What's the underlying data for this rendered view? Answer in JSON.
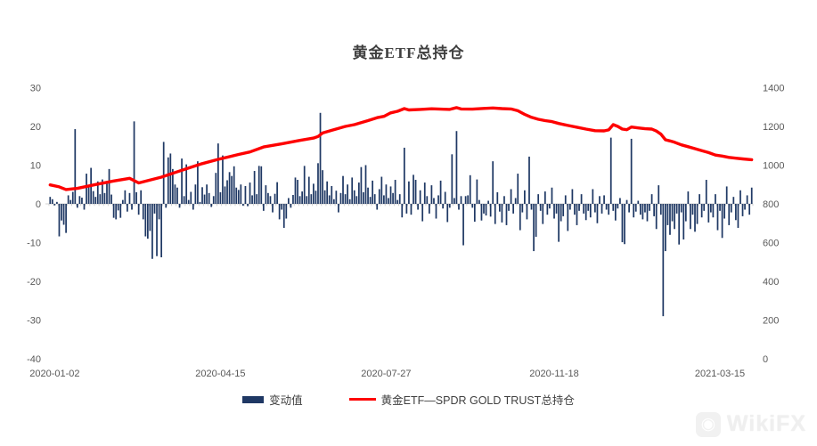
{
  "title": "黄金ETF总持仓",
  "legend": {
    "bar_label": "变动值",
    "line_label": "黄金ETF—SPDR GOLD TRUST总持仓"
  },
  "watermark": {
    "text": "WikiFX"
  },
  "colors": {
    "bar": "#1f3864",
    "line": "#fe0000",
    "axis_text": "#595959",
    "axis_line": "#d9d9d9",
    "tick": "#c8c8c8",
    "title_text": "#3f3f3f"
  },
  "chart_data": {
    "type": "bar+line",
    "title": "黄金ETF总持仓",
    "left_axis": {
      "label": "",
      "ticks": [
        30,
        20,
        10,
        0,
        -10,
        -20,
        -30,
        -40
      ],
      "range": [
        -40,
        30
      ]
    },
    "right_axis": {
      "label": "",
      "ticks": [
        1400,
        1200,
        1000,
        800,
        600,
        400,
        200,
        0
      ],
      "range": [
        0,
        1400
      ]
    },
    "x_tick_labels": [
      "2020-01-02",
      "2020-04-15",
      "2020-07-27",
      "2020-11-18",
      "2021-03-15"
    ],
    "x_tick_indices": [
      2,
      75,
      148,
      222,
      295
    ],
    "grid": false,
    "legend_position": "bottom",
    "series": [
      {
        "name": "变动值",
        "type": "bar",
        "axis": "left",
        "color": "#1f3864",
        "values": [
          1.8,
          1.2,
          -0.4,
          0.5,
          -8.4,
          -4.3,
          -5.4,
          -7.5,
          2.2,
          1,
          3.1,
          19.3,
          -1,
          2,
          1.6,
          -1.5,
          7.8,
          4.5,
          9.3,
          3.3,
          1.8,
          5.8,
          2.5,
          6.3,
          2.8,
          5.2,
          9,
          2.4,
          -3.6,
          -4,
          -1.7,
          -3.6,
          1,
          3.5,
          -2,
          2.8,
          -1.5,
          21.3,
          3,
          -2.8,
          3.5,
          -4,
          -8.4,
          -9,
          -7,
          -14.2,
          -2.5,
          -13.5,
          -4,
          -13.8,
          16,
          -1,
          12,
          13,
          9,
          5,
          4.2,
          -1,
          11.7,
          2,
          10.2,
          1,
          3.1,
          -1.5,
          5,
          11,
          0.5,
          4.3,
          2.4,
          5,
          2.8,
          -0.8,
          2,
          8,
          15.6,
          3,
          12.5,
          4.5,
          6.1,
          8.2,
          7.2,
          9.7,
          4.2,
          3.6,
          5,
          -0.5,
          4.6,
          -0.6,
          5.5,
          2.2,
          8.5,
          2.5,
          9.8,
          9.7,
          -1.8,
          4.8,
          2.8,
          2,
          -2.2,
          2.6,
          5.6,
          -4,
          -1.5,
          -6.2,
          -3.8,
          1.5,
          -1,
          2.3,
          6.8,
          6.2,
          2,
          3.2,
          9.8,
          2,
          7,
          2.5,
          5.2,
          3.4,
          10.5,
          23.5,
          8.7,
          3.5,
          5.8,
          2.2,
          4.6,
          1.2,
          3.4,
          -2.2,
          2.8,
          7.2,
          2.5,
          5,
          1.2,
          6.8,
          3.5,
          2,
          5.5,
          9.5,
          3,
          10,
          4.2,
          1.8,
          6,
          2.5,
          -1.5,
          3.8,
          7,
          2.2,
          5,
          1.5,
          4.5,
          2.8,
          6.2,
          1,
          2.5,
          -3.5,
          14.5,
          -2.5,
          5.8,
          -2.8,
          7.5,
          6.2,
          -1.5,
          3.5,
          -4.5,
          5.5,
          2,
          -2.5,
          4.8,
          1.5,
          -3.8,
          2.2,
          6,
          -1.2,
          3.1,
          -4.7,
          -1,
          12.8,
          1.5,
          18.8,
          -1.5,
          2,
          -10.7,
          2,
          2.2,
          7.4,
          -1,
          -4.6,
          6.3,
          1,
          -4.3,
          -2.5,
          -3,
          0.8,
          -3.3,
          11,
          -5.2,
          3,
          -2,
          -4.8,
          2,
          -5.5,
          -1.8,
          3.8,
          -2.5,
          1.5,
          7.8,
          -6.8,
          -2.2,
          3.5,
          -4,
          12.2,
          -1.5,
          -12.2,
          -8.5,
          2.5,
          -1.8,
          -5.2,
          3.2,
          -2.8,
          -1.2,
          4.2,
          -3.8,
          -2.5,
          -9.8,
          -4.5,
          -3.2,
          2.2,
          -7,
          -1.5,
          3.8,
          -2.8,
          -5.5,
          -1.8,
          2.5,
          -2.5,
          -4.2,
          -1.8,
          -3.5,
          3.8,
          -2.2,
          -5,
          2,
          -2.5,
          2.2,
          -1.5,
          -2.8,
          17.1,
          -1.8,
          -4.3,
          -1.2,
          1.5,
          -9.9,
          -10.4,
          1,
          -2.2,
          16.8,
          -3.5,
          -2,
          0.8,
          -2.8,
          -4,
          -2.2,
          -4.5,
          -1.8,
          2.5,
          -3.2,
          -6.5,
          4.8,
          -2.8,
          -29,
          -12.2,
          -5.5,
          -8,
          -4.5,
          -6.5,
          -2.5,
          -10.5,
          -2.2,
          -9.2,
          -4.5,
          3.2,
          -6.5,
          -2.8,
          -7.2,
          -5.2,
          2.5,
          -3.5,
          -1.8,
          6.2,
          -4.8,
          -2.2,
          -3.5,
          2.5,
          -6.8,
          -1.8,
          -8.8,
          -3.8,
          4.5,
          -5.5,
          -2.2,
          1.8,
          -4.2,
          -6.2,
          3.5,
          -3.2,
          -1.5,
          2.2,
          -2.8,
          4.2
        ]
      },
      {
        "name": "黄金ETF—SPDR GOLD TRUST总持仓",
        "type": "line",
        "axis": "right",
        "color": "#fe0000",
        "points": [
          [
            0,
            898
          ],
          [
            4,
            888
          ],
          [
            7,
            874
          ],
          [
            12,
            880
          ],
          [
            20,
            900
          ],
          [
            28,
            918
          ],
          [
            33,
            928
          ],
          [
            35,
            932
          ],
          [
            39,
            908
          ],
          [
            43,
            920
          ],
          [
            49,
            938
          ],
          [
            55,
            962
          ],
          [
            61,
            985
          ],
          [
            67,
            1008
          ],
          [
            74,
            1030
          ],
          [
            83,
            1055
          ],
          [
            88,
            1068
          ],
          [
            94,
            1094
          ],
          [
            102,
            1110
          ],
          [
            110,
            1128
          ],
          [
            116,
            1140
          ],
          [
            118,
            1148
          ],
          [
            120,
            1166
          ],
          [
            124,
            1180
          ],
          [
            130,
            1200
          ],
          [
            134,
            1209
          ],
          [
            140,
            1230
          ],
          [
            144,
            1245
          ],
          [
            147,
            1252
          ],
          [
            150,
            1270
          ],
          [
            153,
            1278
          ],
          [
            156,
            1292
          ],
          [
            158,
            1285
          ],
          [
            163,
            1288
          ],
          [
            168,
            1291
          ],
          [
            172,
            1289
          ],
          [
            176,
            1288
          ],
          [
            179,
            1297
          ],
          [
            181,
            1290
          ],
          [
            186,
            1289
          ],
          [
            191,
            1293
          ],
          [
            195,
            1295
          ],
          [
            199,
            1292
          ],
          [
            203,
            1290
          ],
          [
            206,
            1281
          ],
          [
            209,
            1262
          ],
          [
            212,
            1247
          ],
          [
            215,
            1237
          ],
          [
            218,
            1230
          ],
          [
            221,
            1225
          ],
          [
            224,
            1215
          ],
          [
            228,
            1205
          ],
          [
            232,
            1196
          ],
          [
            236,
            1186
          ],
          [
            240,
            1178
          ],
          [
            244,
            1177
          ],
          [
            246,
            1182
          ],
          [
            248,
            1209
          ],
          [
            250,
            1200
          ],
          [
            252,
            1186
          ],
          [
            254,
            1183
          ],
          [
            256,
            1197
          ],
          [
            259,
            1192
          ],
          [
            262,
            1188
          ],
          [
            265,
            1186
          ],
          [
            267,
            1176
          ],
          [
            269,
            1160
          ],
          [
            271,
            1131
          ],
          [
            273,
            1125
          ],
          [
            275,
            1118
          ],
          [
            278,
            1105
          ],
          [
            281,
            1095
          ],
          [
            284,
            1085
          ],
          [
            287,
            1075
          ],
          [
            290,
            1065
          ],
          [
            293,
            1052
          ],
          [
            296,
            1047
          ],
          [
            299,
            1040
          ],
          [
            302,
            1036
          ],
          [
            305,
            1032
          ],
          [
            309,
            1028
          ]
        ]
      }
    ]
  }
}
